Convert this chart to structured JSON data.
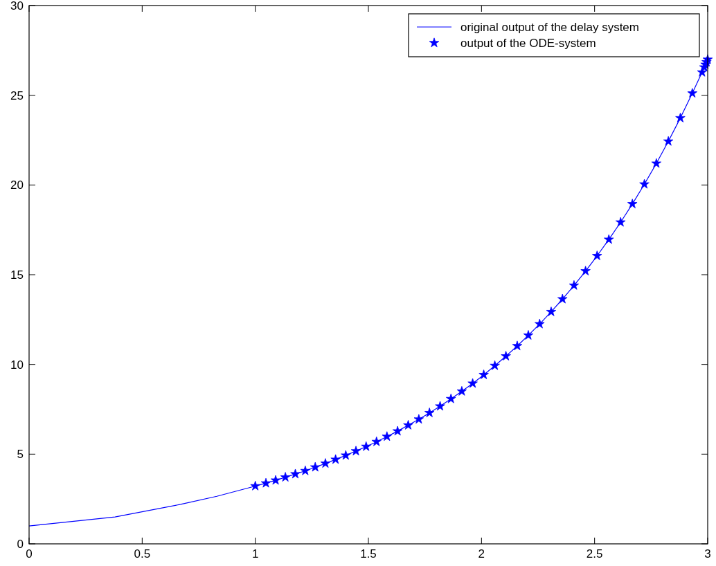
{
  "chart_data": {
    "type": "line",
    "xlim": [
      0,
      3
    ],
    "ylim": [
      0,
      30
    ],
    "xticks": [
      0,
      0.5,
      1,
      1.5,
      2,
      2.5,
      3
    ],
    "yticks": [
      0,
      5,
      10,
      15,
      20,
      25,
      30
    ],
    "grid": false,
    "legend": "top right",
    "series": [
      {
        "name": "original output of the delay system",
        "color": "#0000ff",
        "marker": "none",
        "line_style": "solid",
        "x": [
          0,
          0.38,
          0.67,
          0.83,
          1.0,
          1.047,
          1.09,
          1.133,
          1.177,
          1.221,
          1.265,
          1.31,
          1.355,
          1.4,
          1.445,
          1.49,
          1.536,
          1.582,
          1.629,
          1.676,
          1.723,
          1.77,
          1.817,
          1.865,
          1.913,
          1.961,
          2.01,
          2.059,
          2.108,
          2.158,
          2.207,
          2.257,
          2.308,
          2.358,
          2.409,
          2.46,
          2.511,
          2.563,
          2.615,
          2.667,
          2.72,
          2.773,
          2.826,
          2.879,
          2.932,
          2.975,
          3.0
        ],
        "values": [
          1.0,
          1.5,
          2.2,
          2.65,
          3.22,
          3.38,
          3.54,
          3.71,
          3.89,
          4.07,
          4.27,
          4.48,
          4.7,
          4.93,
          5.17,
          5.42,
          5.69,
          5.98,
          6.28,
          6.61,
          6.94,
          7.3,
          7.67,
          8.08,
          8.5,
          8.94,
          9.42,
          9.93,
          10.46,
          11.03,
          11.62,
          12.25,
          12.93,
          13.64,
          14.4,
          15.2,
          16.05,
          16.96,
          17.92,
          18.94,
          20.04,
          21.2,
          22.43,
          23.73,
          25.11,
          26.28,
          26.99
        ]
      },
      {
        "name": "output of the ODE-system",
        "color": "#0000ff",
        "type": "scatter",
        "marker": "star",
        "x": [
          1.0,
          1.047,
          1.09,
          1.133,
          1.177,
          1.221,
          1.265,
          1.31,
          1.355,
          1.4,
          1.445,
          1.49,
          1.536,
          1.582,
          1.629,
          1.676,
          1.723,
          1.77,
          1.817,
          1.865,
          1.913,
          1.961,
          2.01,
          2.059,
          2.108,
          2.158,
          2.207,
          2.257,
          2.308,
          2.358,
          2.409,
          2.46,
          2.511,
          2.563,
          2.615,
          2.667,
          2.72,
          2.773,
          2.826,
          2.879,
          2.932,
          2.975,
          2.985,
          2.99,
          2.995,
          3.0
        ],
        "values": [
          3.22,
          3.38,
          3.54,
          3.71,
          3.89,
          4.07,
          4.27,
          4.48,
          4.7,
          4.93,
          5.17,
          5.42,
          5.69,
          5.98,
          6.28,
          6.61,
          6.94,
          7.3,
          7.67,
          8.08,
          8.5,
          8.94,
          9.42,
          9.93,
          10.46,
          11.03,
          11.62,
          12.25,
          12.93,
          13.64,
          14.4,
          15.2,
          16.05,
          16.96,
          17.92,
          18.94,
          20.04,
          21.2,
          22.43,
          23.73,
          25.11,
          26.28,
          26.56,
          26.71,
          26.85,
          26.99
        ]
      }
    ]
  }
}
